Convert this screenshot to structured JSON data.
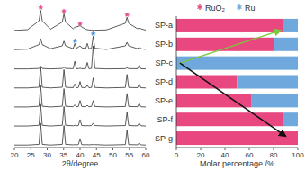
{
  "chart_data": [
    {
      "type": "line",
      "xlabel": "2θ/degree",
      "x": [
        20,
        24,
        27.5,
        28,
        28.5,
        31,
        34.6,
        35.1,
        35.6,
        37.9,
        38.4,
        38.9,
        39.5,
        40,
        40.5,
        41.7,
        42.2,
        42.7,
        43.5,
        44,
        44.5,
        48,
        53.8,
        54.3,
        54.8,
        57.5,
        58,
        58.5,
        60
      ],
      "xlim": [
        20,
        60
      ],
      "xticks": [
        20,
        25,
        30,
        35,
        40,
        45,
        50,
        55,
        60
      ],
      "ylim": [
        0,
        1
      ],
      "tick_labels": "x",
      "color": "#333333",
      "series": [
        {
          "values": [
            0.05,
            0.08,
            0.45,
            0.9,
            0.45,
            0.1,
            0.4,
            0.75,
            0.4,
            0.12,
            0.18,
            0.2,
            0.22,
            0.25,
            0.2,
            0.1,
            0.08,
            0.07,
            0.06,
            0.06,
            0.06,
            0.07,
            0.35,
            0.6,
            0.35,
            0.12,
            0.15,
            0.12,
            0.06
          ]
        },
        {
          "values": [
            0.04,
            0.06,
            0.25,
            0.5,
            0.25,
            0.08,
            0.2,
            0.4,
            0.2,
            0.08,
            0.3,
            0.1,
            0.15,
            0.2,
            0.12,
            0.08,
            0.3,
            0.08,
            0.1,
            0.6,
            0.1,
            0.05,
            0.2,
            0.35,
            0.2,
            0.08,
            0.15,
            0.08,
            0.05
          ]
        },
        {
          "values": [
            0.03,
            0.03,
            0.05,
            0.12,
            0.05,
            0.03,
            0.05,
            0.1,
            0.05,
            0.04,
            0.35,
            0.04,
            0.04,
            0.06,
            0.04,
            0.04,
            0.3,
            0.04,
            0.05,
            1.0,
            0.05,
            0.03,
            0.04,
            0.08,
            0.04,
            0.04,
            0.2,
            0.04,
            0.03
          ]
        },
        {
          "values": [
            0.03,
            0.03,
            0.06,
            0.95,
            0.06,
            0.03,
            0.06,
            0.8,
            0.06,
            0.04,
            0.2,
            0.04,
            0.05,
            0.3,
            0.05,
            0.04,
            0.15,
            0.04,
            0.05,
            0.45,
            0.05,
            0.03,
            0.05,
            0.6,
            0.05,
            0.04,
            0.2,
            0.04,
            0.03
          ]
        },
        {
          "values": [
            0.03,
            0.03,
            0.06,
            0.95,
            0.06,
            0.03,
            0.06,
            0.8,
            0.06,
            0.04,
            0.12,
            0.04,
            0.05,
            0.3,
            0.05,
            0.04,
            0.1,
            0.04,
            0.05,
            0.3,
            0.05,
            0.03,
            0.05,
            0.6,
            0.05,
            0.04,
            0.18,
            0.04,
            0.03
          ]
        },
        {
          "values": [
            0.03,
            0.03,
            0.06,
            0.95,
            0.06,
            0.03,
            0.06,
            0.85,
            0.06,
            0.04,
            0.06,
            0.04,
            0.05,
            0.3,
            0.05,
            0.04,
            0.05,
            0.04,
            0.05,
            0.15,
            0.05,
            0.03,
            0.05,
            0.6,
            0.05,
            0.04,
            0.15,
            0.04,
            0.03
          ]
        },
        {
          "values": [
            0.03,
            0.03,
            0.06,
            0.95,
            0.06,
            0.03,
            0.06,
            0.85,
            0.06,
            0.04,
            0.05,
            0.04,
            0.05,
            0.3,
            0.05,
            0.04,
            0.05,
            0.04,
            0.05,
            0.05,
            0.05,
            0.03,
            0.05,
            0.65,
            0.05,
            0.04,
            0.12,
            0.04,
            0.03
          ]
        }
      ],
      "annotations": [
        {
          "text": "*",
          "x": 28,
          "series": 0,
          "color": "#e8477f"
        },
        {
          "text": "*",
          "x": 35.1,
          "series": 0,
          "color": "#e8477f"
        },
        {
          "text": "*",
          "x": 40,
          "series": 0,
          "color": "#e8477f"
        },
        {
          "text": "*",
          "x": 54.3,
          "series": 0,
          "color": "#e8477f"
        },
        {
          "text": "*",
          "x": 38.4,
          "series": 1,
          "color": "#4a90d9"
        },
        {
          "text": "*",
          "x": 44,
          "series": 1,
          "color": "#4a90d9"
        }
      ]
    },
    {
      "type": "bar",
      "orientation": "horizontal",
      "stacked": true,
      "xlabel": "Molar percentage /%",
      "categories": [
        "SP-a",
        "SP-b",
        "SP-c",
        "SP-d",
        "SP-e",
        "SP-f",
        "SP-g"
      ],
      "xlim": [
        0,
        100
      ],
      "xticks": [
        0,
        20,
        40,
        60,
        80,
        100
      ],
      "legend": "top",
      "marker": "star",
      "series": [
        {
          "name": "RuO₂",
          "color": "#e8477f",
          "values": [
            88,
            80,
            0,
            50,
            62,
            88,
            100
          ]
        },
        {
          "name": "Ru",
          "color": "#6fa8dc",
          "values": [
            12,
            20,
            100,
            50,
            38,
            12,
            0
          ]
        }
      ]
    }
  ]
}
